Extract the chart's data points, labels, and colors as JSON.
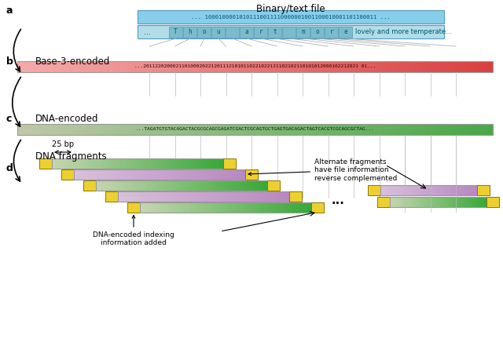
{
  "title": "Binary/text file",
  "binary_text": "... 10001000010101110011110000001001100010001101100 11 ...",
  "base3_label": "Base-3-encoded",
  "base3_text": "...2011220200021101000202212011121010110221022121102102110101012000102212021 01...",
  "dna_label": "DNA-encoded",
  "dna_text": "...TAGATGTGTACAGACTACGCGCAGCGAGATCGACTCGCAGTGCTGAGTGACAGACTAGTCACGTCGCAGCGCTAG...",
  "frag_label": "DNA fragments",
  "bp_label": "25 bp",
  "annot1": "Alternate fragments\nhave file information\nreverse complemented",
  "annot2": "DNA-encoded indexing\ninformation added",
  "labels": [
    "a",
    "b",
    "c",
    "d"
  ],
  "color_binary_top": "#87CEEB",
  "color_binary_bot": "#B2DDE8",
  "color_base3_left": "#F5AAAA",
  "color_base3_right": "#D94040",
  "color_dna_left": "#BEC8A8",
  "color_dna_right": "#48A848",
  "color_frag_green_left": "#C5D5B0",
  "color_frag_green_right": "#38A838",
  "color_frag_purple_left": "#D8C0DC",
  "color_frag_purple_right": "#B888C0",
  "color_yellow": "#EDD030",
  "bg_color": "#FFFFFF",
  "char_box_color": "#7BBCCC",
  "char_border": "#5599BB"
}
